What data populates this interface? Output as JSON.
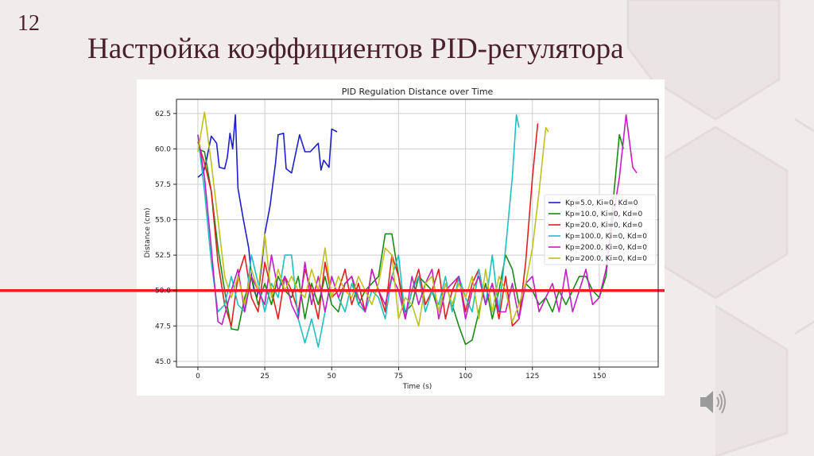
{
  "slide": {
    "number": "12",
    "title": "Настройка коэффициентов PID-регулятора",
    "speaker_icon": "speaker-icon"
  },
  "chart_data": {
    "type": "line",
    "title": "PID Regulation Distance over Time",
    "xlabel": "Time (s)",
    "ylabel": "Distance (cm)",
    "xlim": [
      -8,
      172
    ],
    "ylim": [
      44.6,
      63.5
    ],
    "xticks": [
      "0",
      "25",
      "50",
      "75",
      "100",
      "125",
      "150"
    ],
    "yticks": [
      "45.0",
      "47.5",
      "50.0",
      "52.5",
      "55.0",
      "57.5",
      "60.0",
      "62.5"
    ],
    "grid": true,
    "legend_position": "center-right",
    "setpoint": {
      "y": 50.0,
      "color": "#e8202a"
    },
    "series": [
      {
        "name": "Kp=5.0, Ki=0, Kd=0",
        "color": "#1f1fc8",
        "x": [
          0,
          2,
          3,
          5,
          7,
          8,
          10,
          11,
          12,
          13,
          14,
          15,
          17,
          19,
          20,
          21,
          22,
          23,
          24,
          25,
          27,
          29,
          30,
          32,
          33,
          35,
          38,
          40,
          42,
          43,
          45,
          46,
          47,
          49,
          50,
          52
        ],
        "y": [
          58,
          58.3,
          59,
          60.9,
          60.4,
          58.7,
          58.6,
          59.4,
          61.1,
          60,
          62.4,
          57.2,
          55,
          53,
          51,
          50,
          49.5,
          50.5,
          52,
          54,
          56,
          59,
          61,
          61.1,
          58.6,
          58.3,
          61,
          59.8,
          59.8,
          60,
          60.4,
          58.5,
          59.2,
          58.7,
          61.4,
          61.2
        ]
      },
      {
        "name": "Kp=10.0, Ki=0, Kd=0",
        "color": "#1a8a1a",
        "x": [
          0,
          2.5,
          5,
          7.5,
          10,
          12.5,
          15,
          17.5,
          20,
          22.5,
          25,
          27.5,
          30,
          32.5,
          35,
          37.5,
          40,
          42.5,
          45,
          47.5,
          50,
          52.5,
          55,
          57.5,
          60,
          62.5,
          65,
          67.5,
          70,
          72.5,
          75,
          77.5,
          80,
          82.5,
          85,
          87.5,
          90,
          92.5,
          95,
          97.5,
          100,
          102.5,
          105,
          107.5,
          110,
          112.5,
          115,
          117.5,
          120,
          122.5,
          125,
          127.5,
          130,
          132.5,
          135,
          137.5,
          140,
          142.5,
          145,
          147.5,
          150,
          152.5,
          155,
          157.5,
          159
        ],
        "y": [
          60,
          59.8,
          57,
          53,
          50,
          47.3,
          47.2,
          49.5,
          51,
          49,
          50.5,
          49,
          51,
          50,
          49.5,
          51,
          48,
          50.5,
          49,
          51,
          49,
          48.5,
          50.5,
          51,
          49,
          50,
          50.5,
          51,
          54,
          54,
          51,
          48.5,
          49,
          51,
          50.5,
          50,
          48.5,
          50.5,
          49,
          47.5,
          46.2,
          46.5,
          48.5,
          50.5,
          48,
          50,
          52.5,
          51.5,
          49,
          50.5,
          50,
          49,
          49.5,
          48.5,
          50,
          49,
          50,
          51,
          51,
          50,
          49.5,
          51,
          56,
          61,
          60
        ]
      },
      {
        "name": "Kp=20.0, Ki=0, Kd=0",
        "color": "#e02020",
        "x": [
          0,
          2.5,
          5,
          7.5,
          10,
          12.5,
          15,
          17.5,
          20,
          22.5,
          25,
          27.5,
          30,
          32.5,
          35,
          37.5,
          40,
          42.5,
          45,
          47.5,
          50,
          52.5,
          55,
          57.5,
          60,
          62.5,
          65,
          67.5,
          70,
          72.5,
          75,
          77.5,
          80,
          82.5,
          85,
          87.5,
          90,
          92.5,
          95,
          97.5,
          100,
          102.5,
          105,
          107.5,
          110,
          112.5,
          115,
          117.5,
          120,
          122.5,
          125,
          127
        ],
        "y": [
          60.5,
          59,
          57,
          52,
          49,
          47.5,
          51,
          52.5,
          49.5,
          48.5,
          52,
          50,
          48,
          51,
          50,
          48.5,
          51.5,
          50,
          48,
          52,
          49.5,
          50,
          51.5,
          49,
          50.5,
          48.5,
          51.5,
          50,
          48.5,
          52.5,
          51,
          48,
          50,
          51.5,
          49,
          50,
          51.5,
          48,
          50,
          51,
          48.5,
          50.5,
          51.5,
          49,
          50.5,
          48,
          51,
          47.5,
          48,
          52,
          58,
          61.8
        ]
      },
      {
        "name": "Kp=100.0, Ki=0, Kd=0",
        "color": "#20c0c0",
        "x": [
          0,
          2.5,
          5,
          7.5,
          10,
          12.5,
          15,
          17.5,
          20,
          22.5,
          25,
          27.5,
          30,
          32.5,
          35,
          37.5,
          40,
          42.5,
          45,
          47.5,
          50,
          52.5,
          55,
          57.5,
          60,
          62.5,
          65,
          67.5,
          70,
          72.5,
          75,
          77.5,
          80,
          82.5,
          85,
          87.5,
          90,
          92.5,
          95,
          97.5,
          100,
          102.5,
          105,
          107.5,
          110,
          112.5,
          115,
          117.5,
          119,
          120
        ],
        "y": [
          61,
          57,
          52,
          48.5,
          49,
          51,
          49,
          48.5,
          52.5,
          50.5,
          48.5,
          50.5,
          49.5,
          52.5,
          52.5,
          48,
          46.3,
          48,
          46,
          48.5,
          51,
          49.5,
          48.5,
          50.5,
          49,
          48.5,
          50,
          49.5,
          48,
          51,
          52.5,
          48,
          50,
          51,
          48.5,
          50,
          49,
          51,
          48.5,
          51,
          49.5,
          48.5,
          51.5,
          49,
          52.5,
          48.5,
          53,
          58,
          62.4,
          61.5
        ]
      },
      {
        "name": "Kp=200.0, Ki=0, Kd=0",
        "color": "#c020c0",
        "x": [
          0,
          2.5,
          5,
          7.5,
          9,
          12.5,
          15,
          17.5,
          20,
          22.5,
          25,
          27.5,
          30,
          32.5,
          35,
          37.5,
          40,
          42.5,
          45,
          47.5,
          50,
          52.5,
          55,
          57.5,
          60,
          62.5,
          65,
          67.5,
          70,
          72.5,
          75,
          77.5,
          80,
          82.5,
          85,
          87.5,
          90,
          92.5,
          95,
          97.5,
          100,
          102.5,
          105,
          107.5,
          110,
          112.5,
          115,
          117.5,
          120,
          122.5,
          125,
          127.5,
          130,
          132.5,
          135,
          137.5,
          140,
          142.5,
          145,
          147.5,
          150,
          152.5,
          155,
          157.5,
          160,
          162.5,
          164
        ],
        "y": [
          61,
          58,
          53,
          47.8,
          47.6,
          50,
          51.5,
          48.5,
          51,
          50,
          49,
          52.5,
          50,
          51,
          49,
          48,
          52,
          49,
          51,
          48.5,
          51,
          49.5,
          50.5,
          51,
          49.5,
          48.5,
          51.5,
          50,
          49,
          51,
          50,
          48,
          51,
          49,
          50.5,
          51.5,
          48,
          50,
          50.5,
          51,
          48,
          50,
          51,
          49,
          50.5,
          48.5,
          48.5,
          50.5,
          48,
          50.5,
          51,
          48.5,
          49.5,
          50.5,
          48.5,
          51.5,
          48.5,
          50,
          51.5,
          49,
          49.5,
          51.5,
          55,
          58,
          62.4,
          58.7,
          58.3
        ]
      },
      {
        "name": "Kp=200.0, Ki=0, Kd=0",
        "color": "#c0c020",
        "x": [
          0,
          2.5,
          5,
          7.5,
          10,
          12.5,
          15,
          17.5,
          20,
          22.5,
          25,
          27.5,
          30,
          32.5,
          35,
          37.5,
          40,
          42.5,
          45,
          47.5,
          50,
          52.5,
          55,
          57.5,
          60,
          62.5,
          65,
          67.5,
          70,
          72.5,
          75,
          77.5,
          80,
          82.5,
          85,
          87.5,
          90,
          92.5,
          95,
          97.5,
          100,
          102.5,
          105,
          107.5,
          110,
          112.5,
          115,
          117.5,
          120,
          122.5,
          125,
          127.5,
          130,
          131
        ],
        "y": [
          59.8,
          62.6,
          59,
          55,
          51,
          49.5,
          51,
          49,
          51.5,
          50,
          54,
          49.5,
          51.5,
          50,
          51,
          50,
          49.5,
          51.5,
          50,
          53,
          49.5,
          51,
          50,
          49.5,
          51,
          50,
          49,
          50.5,
          53,
          52.5,
          48,
          49.5,
          49,
          47.5,
          50.5,
          51,
          48.5,
          50.5,
          49,
          50.5,
          49.5,
          51,
          48,
          51.5,
          48.5,
          51,
          50,
          47.8,
          49,
          50.5,
          53,
          57,
          61.5,
          61.2
        ]
      }
    ]
  }
}
